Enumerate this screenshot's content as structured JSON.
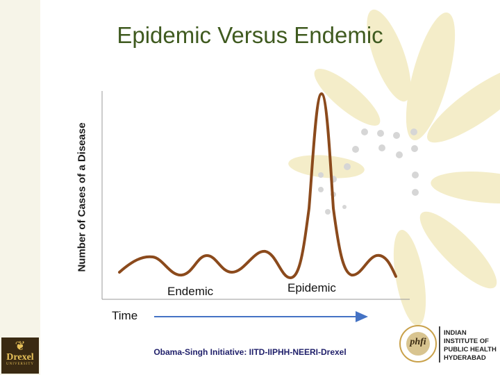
{
  "slide": {
    "title": "Epidemic Versus Endemic",
    "credit": "Obama-Singh Initiative: IITD-IIPHH-NEERI-Drexel"
  },
  "diagram": {
    "ylabel": "Number of Cases of a Disease",
    "endemic_label": "Endemic",
    "epidemic_label": "Epidemic",
    "time_label": "Time",
    "colors": {
      "curve": "#8b4a1c",
      "axis": "#999999",
      "time_arrow": "#4472c4",
      "title": "#3f5a1f"
    }
  },
  "logos": {
    "drexel": {
      "word": "Drexel",
      "sub": "UNIVERSITY"
    },
    "iiph": {
      "lines": [
        "INDIAN",
        "INSTITUTE OF",
        "PUBLIC HEALTH",
        "HYDERABAD"
      ]
    }
  }
}
